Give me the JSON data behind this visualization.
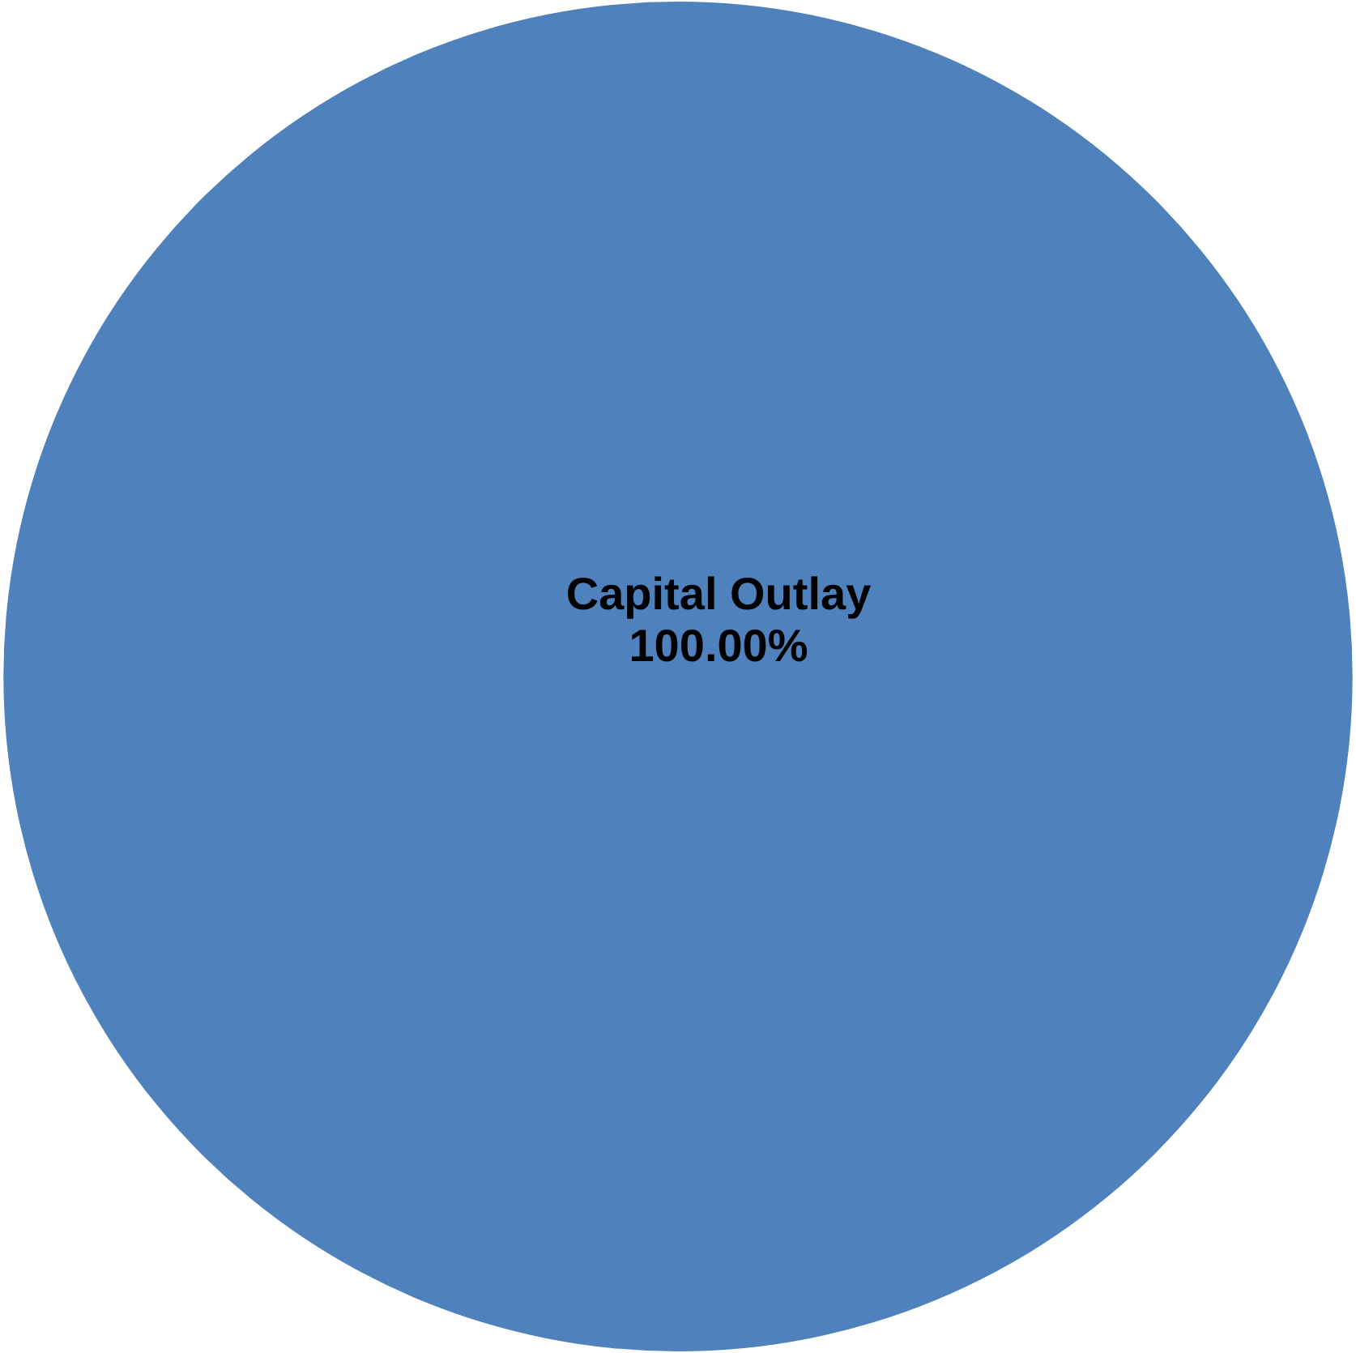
{
  "chart_data": {
    "type": "pie",
    "categories": [
      "Capital Outlay"
    ],
    "values": [
      100
    ],
    "colors": [
      "#4f81bd"
    ],
    "value_labels": [
      "100.00%"
    ]
  }
}
